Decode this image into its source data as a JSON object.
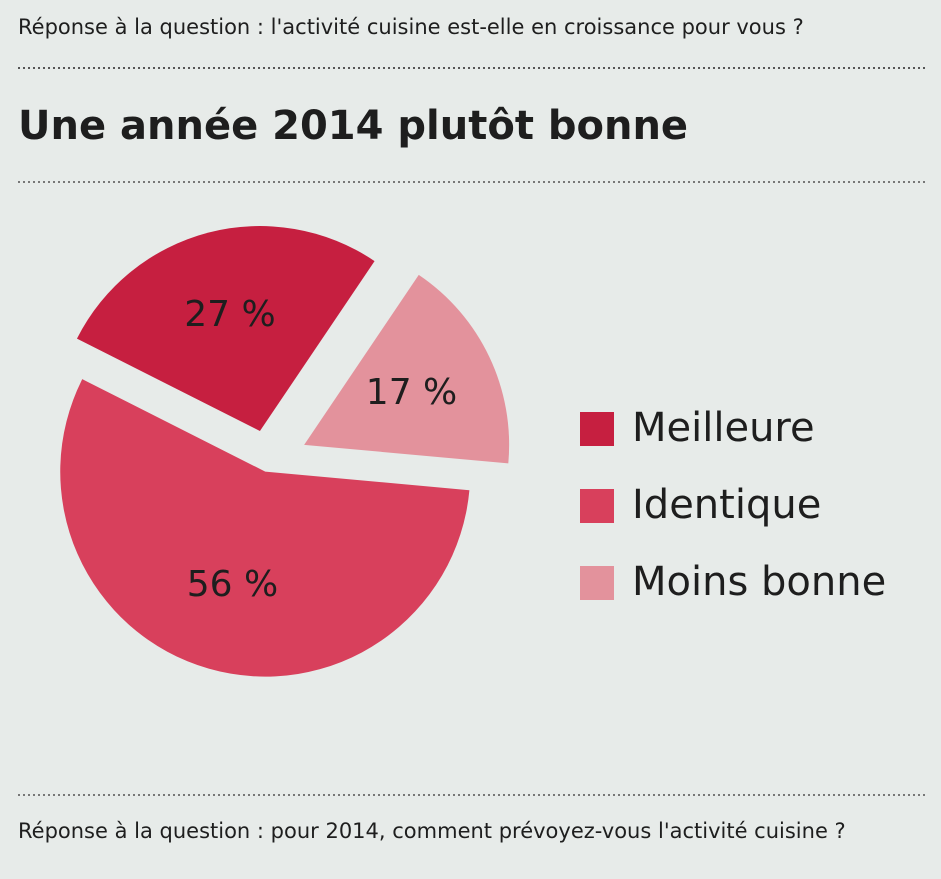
{
  "chart_data": {
    "type": "pie",
    "header": "Réponse à la question : l'activité cuisine est-elle en croissance pour vous ?",
    "title": "Une année 2014 plutôt bonne",
    "footer": "Réponse à la question : pour 2014, comment prévoyez-vous l'activité cuisine ?",
    "categories": [
      "Meilleure",
      "Identique",
      "Moins bonne"
    ],
    "values": [
      27,
      56,
      17
    ],
    "value_labels": [
      "27 %",
      "56 %",
      "17 %"
    ],
    "colors": [
      "#c61f40",
      "#d8405c",
      "#e3929c"
    ]
  }
}
